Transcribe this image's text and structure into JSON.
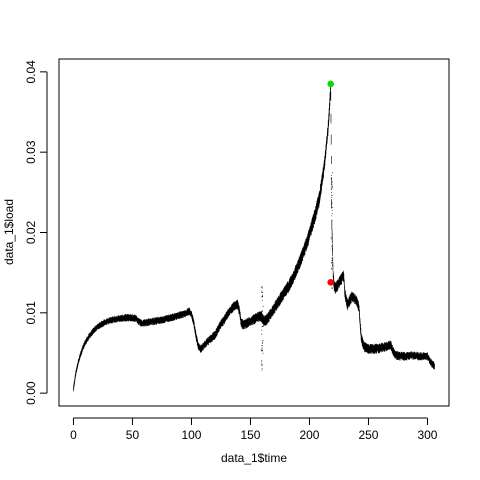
{
  "chart_data": {
    "type": "scatter",
    "title": "",
    "xlabel": "data_1$time",
    "ylabel": "data_1$load",
    "xlim": [
      0,
      306
    ],
    "ylim": [
      0,
      0.04
    ],
    "x_ticks": [
      0,
      50,
      100,
      150,
      200,
      250,
      300
    ],
    "x_tick_labels": [
      "0",
      "50",
      "100",
      "150",
      "200",
      "250",
      "300"
    ],
    "y_ticks": [
      0,
      0.01,
      0.02,
      0.03,
      0.04
    ],
    "y_tick_labels": [
      "0.00",
      "0.01",
      "0.02",
      "0.03",
      "0.04"
    ],
    "grid": false,
    "legend": "none",
    "colors": {
      "series": "#000000",
      "max_point": "#00dd00",
      "marked_point": "#ff0000"
    },
    "series": [
      {
        "values_description": "load",
        "points": [
          [
            0,
            0.0005
          ],
          [
            1,
            0.0015
          ],
          [
            2,
            0.0025
          ],
          [
            4,
            0.0038
          ],
          [
            6,
            0.0048
          ],
          [
            8,
            0.0056
          ],
          [
            10,
            0.0063
          ],
          [
            13,
            0.007
          ],
          [
            16,
            0.0076
          ],
          [
            20,
            0.0082
          ],
          [
            25,
            0.0087
          ],
          [
            30,
            0.009
          ],
          [
            35,
            0.0092
          ],
          [
            40,
            0.0093
          ],
          [
            45,
            0.0094
          ],
          [
            50,
            0.0094
          ],
          [
            53,
            0.0093
          ],
          [
            55,
            0.0089
          ],
          [
            58,
            0.0087
          ],
          [
            62,
            0.0088
          ],
          [
            66,
            0.0089
          ],
          [
            70,
            0.009
          ],
          [
            75,
            0.0091
          ],
          [
            80,
            0.0093
          ],
          [
            85,
            0.0095
          ],
          [
            90,
            0.0097
          ],
          [
            95,
            0.0099
          ],
          [
            98,
            0.0102
          ],
          [
            100,
            0.0098
          ],
          [
            102,
            0.0088
          ],
          [
            104,
            0.007
          ],
          [
            106,
            0.0058
          ],
          [
            108,
            0.0055
          ],
          [
            110,
            0.0058
          ],
          [
            112,
            0.0062
          ],
          [
            115,
            0.0066
          ],
          [
            118,
            0.007
          ],
          [
            120,
            0.0072
          ],
          [
            122,
            0.0078
          ],
          [
            125,
            0.0086
          ],
          [
            128,
            0.0092
          ],
          [
            130,
            0.0097
          ],
          [
            133,
            0.0103
          ],
          [
            136,
            0.0108
          ],
          [
            139,
            0.0111
          ],
          [
            141,
            0.01
          ],
          [
            142,
            0.0088
          ],
          [
            144,
            0.0085
          ],
          [
            147,
            0.0087
          ],
          [
            150,
            0.009
          ],
          [
            153,
            0.0092
          ],
          [
            156,
            0.0094
          ],
          [
            159,
            0.0096
          ],
          [
            161,
            0.009
          ],
          [
            163,
            0.009
          ],
          [
            166,
            0.0096
          ],
          [
            169,
            0.0103
          ],
          [
            172,
            0.011
          ],
          [
            175,
            0.0117
          ],
          [
            178,
            0.0123
          ],
          [
            181,
            0.013
          ],
          [
            184,
            0.0138
          ],
          [
            187,
            0.0147
          ],
          [
            190,
            0.0157
          ],
          [
            193,
            0.0168
          ],
          [
            196,
            0.018
          ],
          [
            199,
            0.0193
          ],
          [
            202,
            0.0208
          ],
          [
            205,
            0.0223
          ],
          [
            208,
            0.024
          ],
          [
            210,
            0.0257
          ],
          [
            212,
            0.0278
          ],
          [
            214,
            0.0303
          ],
          [
            216,
            0.0333
          ],
          [
            217,
            0.0355
          ],
          [
            218,
            0.0385
          ],
          [
            219,
            0.021
          ],
          [
            220,
            0.015
          ],
          [
            221,
            0.0133
          ],
          [
            222,
            0.013
          ],
          [
            224,
            0.0135
          ],
          [
            226,
            0.014
          ],
          [
            228,
            0.0144
          ],
          [
            229,
            0.0146
          ],
          [
            230,
            0.0125
          ],
          [
            232,
            0.011
          ],
          [
            234,
            0.0115
          ],
          [
            236,
            0.012
          ],
          [
            238,
            0.0118
          ],
          [
            240,
            0.0114
          ],
          [
            242,
            0.0106
          ],
          [
            243,
            0.0085
          ],
          [
            244,
            0.0068
          ],
          [
            246,
            0.0058
          ],
          [
            250,
            0.0055
          ],
          [
            255,
            0.0055
          ],
          [
            260,
            0.0056
          ],
          [
            265,
            0.0058
          ],
          [
            269,
            0.006
          ],
          [
            271,
            0.0052
          ],
          [
            273,
            0.0047
          ],
          [
            277,
            0.0046
          ],
          [
            282,
            0.0046
          ],
          [
            287,
            0.0047
          ],
          [
            292,
            0.0046
          ],
          [
            297,
            0.0046
          ],
          [
            300,
            0.0046
          ],
          [
            302,
            0.004
          ],
          [
            304,
            0.0036
          ],
          [
            306,
            0.0034
          ]
        ],
        "noise": [
          [
            0,
            0.0003
          ],
          [
            50,
            0.0004
          ],
          [
            100,
            0.0004
          ],
          [
            170,
            0.0006
          ],
          [
            210,
            0.0008
          ],
          [
            225,
            0.0006
          ],
          [
            306,
            0.0004
          ]
        ]
      }
    ],
    "spikes": [
      {
        "x": 160,
        "y_low": 0.0028,
        "y_high": 0.0138
      },
      {
        "x": 219,
        "y_low": 0.013,
        "y_high": 0.0275
      }
    ],
    "highlight_points": [
      {
        "x": 218,
        "y": 0.0385,
        "color": "#00dd00"
      },
      {
        "x": 218,
        "y": 0.0138,
        "color": "#ff0000"
      }
    ]
  }
}
